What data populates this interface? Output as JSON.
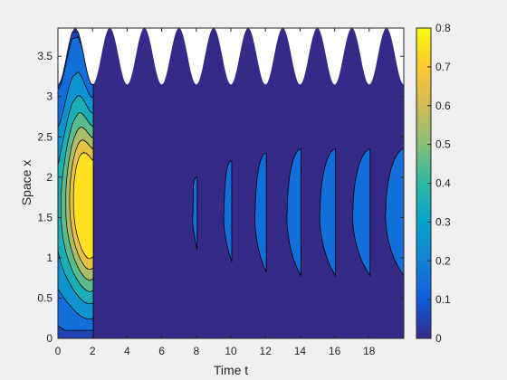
{
  "chart_data": {
    "type": "contourf",
    "xlabel": "Time t",
    "ylabel": "Space x",
    "xlim": [
      0,
      20
    ],
    "ylim": [
      0,
      3.85
    ],
    "xticks": [
      "0",
      "2",
      "4",
      "6",
      "8",
      "10",
      "12",
      "14",
      "16",
      "18"
    ],
    "yticks": [
      "0",
      "0.5",
      "1",
      "1.5",
      "2",
      "2.5",
      "3",
      "3.5"
    ],
    "colorbar": {
      "ticks": [
        "0",
        "0.1",
        "0.2",
        "0.3",
        "0.4",
        "0.5",
        "0.6",
        "0.7",
        "0.8"
      ],
      "range": [
        0,
        0.8
      ],
      "colormap": "parula"
    },
    "domain_boundary": {
      "description": "upper boundary x = 3.5 + 0.35*cos(pi*(t-1))",
      "mean": 3.5,
      "amplitude": 0.35,
      "period": 2
    },
    "initial_pulse": {
      "t_range": [
        0,
        2.05
      ],
      "x_range": [
        0.1,
        3.8
      ],
      "peak_value": 0.78,
      "peak_t": 1.75,
      "peak_x": 1.6
    },
    "bands": [
      {
        "t_start": 7.75,
        "t_end": 8.05,
        "x_top": 2.0,
        "x_bottom": 1.1,
        "value_level": 0.1
      },
      {
        "t_start": 9.55,
        "t_end": 10.05,
        "x_top": 2.2,
        "x_bottom": 0.95,
        "value_level": 0.1
      },
      {
        "t_start": 11.35,
        "t_end": 12.05,
        "x_top": 2.3,
        "x_bottom": 0.82,
        "value_level": 0.1
      },
      {
        "t_start": 13.2,
        "t_end": 14.05,
        "x_top": 2.35,
        "x_bottom": 0.78,
        "value_level": 0.1
      },
      {
        "t_start": 15.1,
        "t_end": 16.05,
        "x_top": 2.35,
        "x_bottom": 0.78,
        "value_level": 0.1
      },
      {
        "t_start": 17.0,
        "t_end": 18.05,
        "x_top": 2.35,
        "x_bottom": 0.78,
        "value_level": 0.1
      },
      {
        "t_start": 18.9,
        "t_end": 20.0,
        "x_top": 2.35,
        "x_bottom": 0.78,
        "value_level": 0.1
      }
    ],
    "background_value": 0.0
  }
}
